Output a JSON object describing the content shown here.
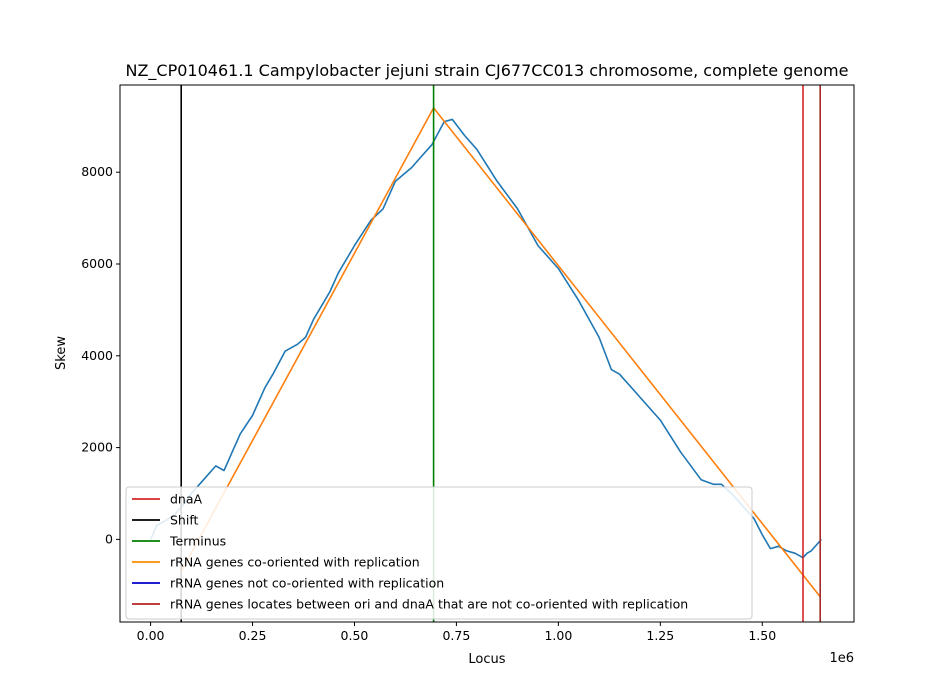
{
  "chart_data": {
    "type": "line",
    "title": "NZ_CP010461.1 Campylobacter jejuni strain CJ677CC013 chromosome, complete genome",
    "xlabel": "Locus",
    "ylabel": "Skew",
    "x_offset_text": "1e6",
    "xlim": [
      -75000,
      1725000
    ],
    "ylim": [
      -1800,
      9900
    ],
    "x_ticks": [
      0,
      250000,
      500000,
      750000,
      1000000,
      1250000,
      1500000
    ],
    "x_tick_labels": [
      "0.00",
      "0.25",
      "0.50",
      "0.75",
      "1.00",
      "1.25",
      "1.50"
    ],
    "y_ticks": [
      0,
      2000,
      4000,
      6000,
      8000
    ],
    "y_tick_labels": [
      "0",
      "2000",
      "4000",
      "6000",
      "8000"
    ],
    "grid": false,
    "legend_position": "lower-left",
    "series": [
      {
        "name": "",
        "color": "#1f77b4",
        "x": [
          0,
          15000,
          35000,
          60000,
          80000,
          100000,
          130000,
          160000,
          180000,
          190000,
          200000,
          220000,
          250000,
          280000,
          300000,
          330000,
          360000,
          380000,
          400000,
          420000,
          440000,
          460000,
          500000,
          540000,
          570000,
          600000,
          620000,
          640000,
          660000,
          690000,
          720000,
          740000,
          770000,
          800000,
          850000,
          900000,
          950000,
          1000000,
          1050000,
          1100000,
          1130000,
          1150000,
          1200000,
          1250000,
          1300000,
          1350000,
          1380000,
          1400000,
          1430000,
          1460000,
          1480000,
          1500000,
          1520000,
          1540000,
          1560000,
          1580000,
          1600000,
          1610000,
          1620000,
          1635000,
          1645000
        ],
        "y": [
          0,
          300,
          400,
          550,
          750,
          1000,
          1300,
          1600,
          1500,
          1700,
          1900,
          2300,
          2700,
          3300,
          3600,
          4100,
          4250,
          4400,
          4800,
          5100,
          5400,
          5800,
          6400,
          6950,
          7200,
          7800,
          7950,
          8100,
          8300,
          8600,
          9100,
          9150,
          8800,
          8500,
          7800,
          7200,
          6400,
          5900,
          5200,
          4400,
          3700,
          3600,
          3100,
          2600,
          1900,
          1300,
          1200,
          1200,
          950,
          650,
          450,
          100,
          -200,
          -150,
          -250,
          -300,
          -400,
          -300,
          -250,
          -100,
          0
        ]
      },
      {
        "name": "rRNA genes co-oriented with replication",
        "color": "#ff7f0e",
        "x": [
          75000,
          694000,
          1642000
        ],
        "y": [
          -700,
          9400,
          -1250
        ]
      }
    ],
    "vertical_lines": [
      {
        "name": "dnaA",
        "x": 1600000,
        "color": "#d62728"
      },
      {
        "name": "Shift",
        "x": 75000,
        "color": "#000000"
      },
      {
        "name": "Terminus",
        "x": 694000,
        "color": "#008000"
      },
      {
        "name": "rRNA genes locates between ori and dnaA that are not co-oriented with replication",
        "x": 1642000,
        "color": "#a52a2a"
      }
    ],
    "legend": [
      {
        "label": "dnaA",
        "color": "#d62728"
      },
      {
        "label": "Shift",
        "color": "#000000"
      },
      {
        "label": "Terminus",
        "color": "#008000"
      },
      {
        "label": "rRNA genes co-oriented with replication",
        "color": "#ff8c00"
      },
      {
        "label": "rRNA genes not co-oriented with replication",
        "color": "#0000cc"
      },
      {
        "label": "rRNA genes locates between ori and dnaA that are not co-oriented with replication",
        "color": "#b22222"
      }
    ]
  }
}
